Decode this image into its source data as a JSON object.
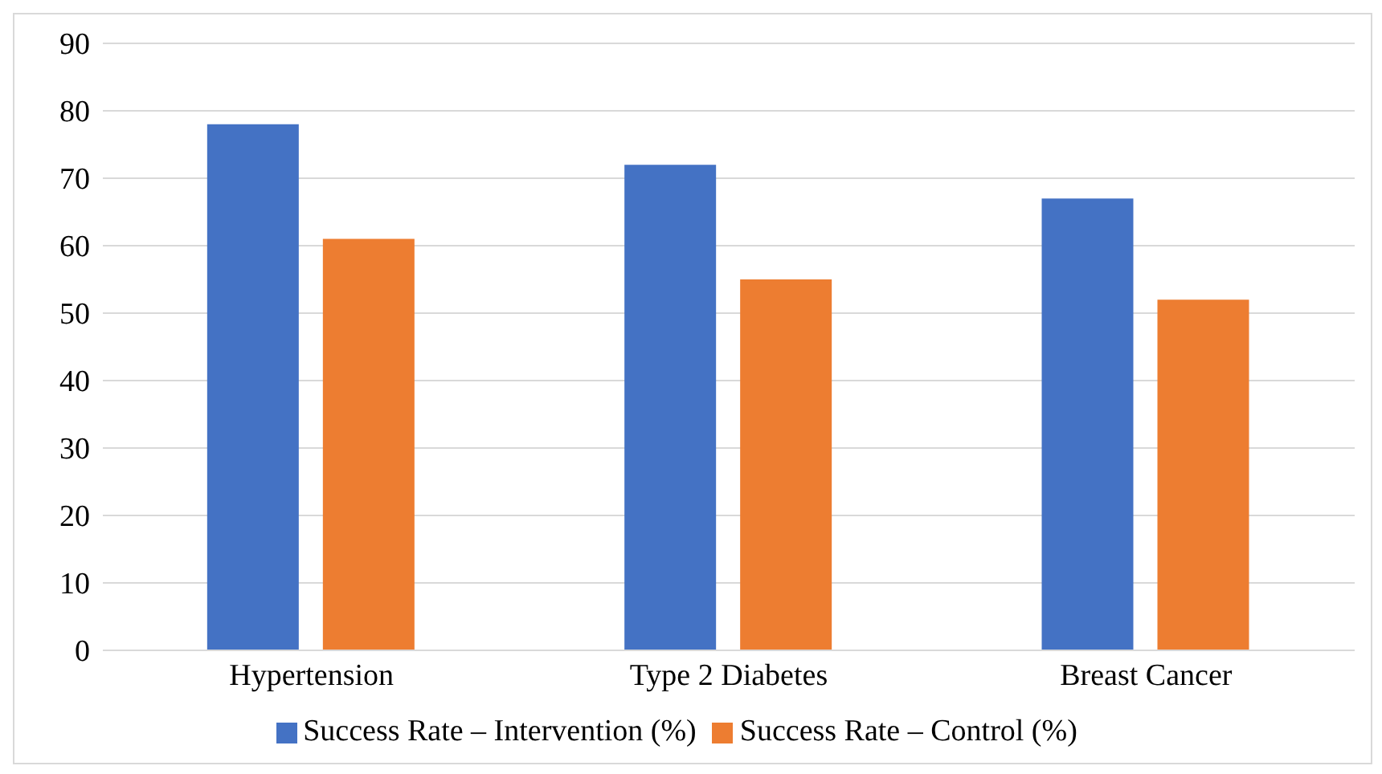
{
  "chart_data": {
    "type": "bar",
    "categories": [
      "Hypertension",
      "Type 2 Diabetes",
      "Breast Cancer"
    ],
    "series": [
      {
        "name": "Success Rate – Intervention (%)",
        "color": "#4472c4",
        "values": [
          78,
          72,
          67
        ]
      },
      {
        "name": "Success Rate – Control (%)",
        "color": "#ed7d31",
        "values": [
          61,
          55,
          52
        ]
      }
    ],
    "ylim": [
      0,
      90
    ],
    "yticks": [
      0,
      10,
      20,
      30,
      40,
      50,
      60,
      70,
      80,
      90
    ],
    "grid": "y",
    "legend": "bottom"
  }
}
